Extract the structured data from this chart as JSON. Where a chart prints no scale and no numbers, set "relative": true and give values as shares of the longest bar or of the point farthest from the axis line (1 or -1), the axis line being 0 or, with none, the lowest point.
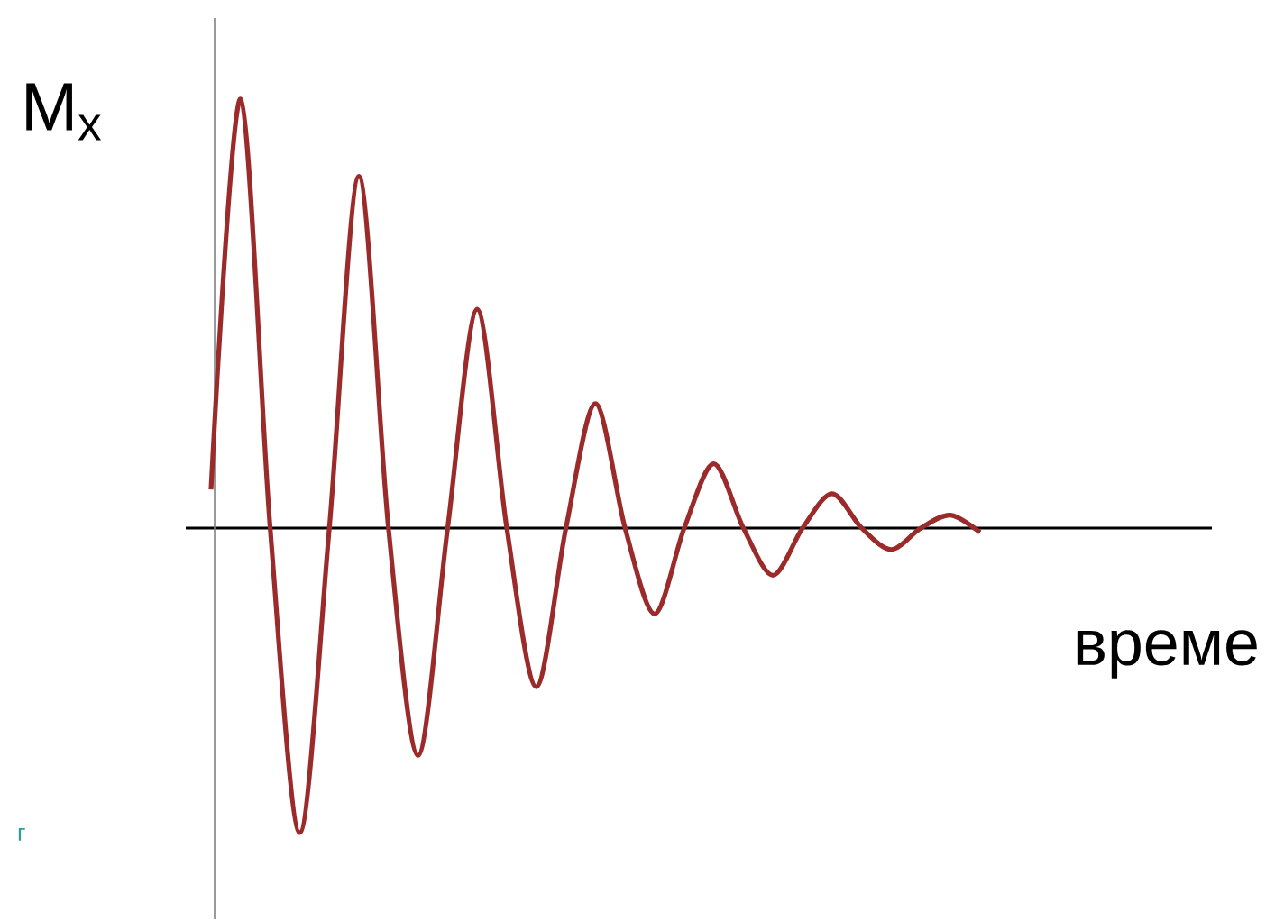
{
  "chart_data": {
    "type": "line",
    "relative": true,
    "marker": "none",
    "color": "#9b2b2b",
    "ylabel": "M$_{x}$",
    "xlabel": "време",
    "annotations": [
      "г"
    ],
    "categories": [
      null,
      null,
      null,
      null,
      null,
      null,
      null,
      null,
      null,
      null,
      null,
      null,
      null,
      null,
      null,
      null,
      null,
      null,
      null,
      null,
      null,
      null,
      null,
      null,
      null,
      null,
      null
    ],
    "values": [
      0.09,
      1,
      0,
      -0.71,
      0,
      0.82,
      0,
      -0.53,
      0,
      0.51,
      0,
      -0.37,
      0,
      0.29,
      0,
      -0.2,
      0,
      0.15,
      0,
      -0.11,
      0,
      0.08,
      0,
      -0.05,
      0,
      0.03,
      -0.01
    ]
  }
}
